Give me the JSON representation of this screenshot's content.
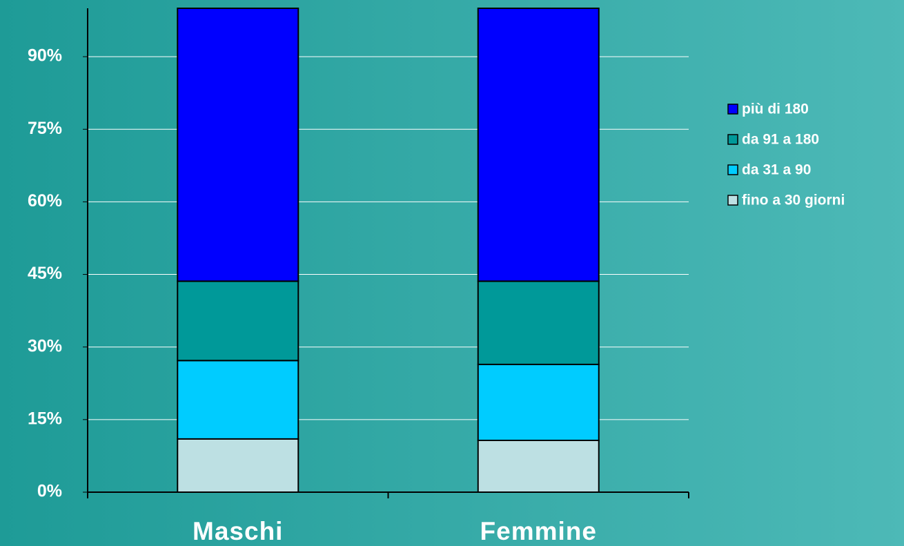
{
  "chart_data": {
    "type": "stacked_bar",
    "categories": [
      "Maschi",
      "Femmine"
    ],
    "series": [
      {
        "name": "fino a 30 giorni",
        "color": "#bde0e3",
        "values": [
          11,
          10.7
        ]
      },
      {
        "name": "da 31 a 90",
        "color": "#00ccff",
        "values": [
          16.2,
          15.7
        ]
      },
      {
        "name": "da 91 a 180",
        "color": "#009999",
        "values": [
          16.4,
          17.2
        ]
      },
      {
        "name": "più di 180",
        "color": "#0000ff",
        "values": [
          56.4,
          56.4
        ]
      }
    ],
    "ylim": [
      0,
      100
    ],
    "yticks": [
      {
        "value": 0,
        "label": "0%"
      },
      {
        "value": 15,
        "label": "15%"
      },
      {
        "value": 30,
        "label": "30%"
      },
      {
        "value": 45,
        "label": "45%"
      },
      {
        "value": 60,
        "label": "60%"
      },
      {
        "value": 75,
        "label": "75%"
      },
      {
        "value": 90,
        "label": "90%"
      }
    ],
    "grid": true,
    "legend": "right"
  }
}
